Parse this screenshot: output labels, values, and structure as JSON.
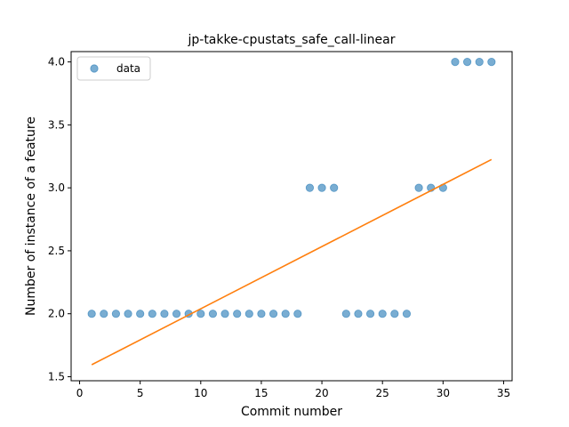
{
  "chart_data": {
    "type": "scatter",
    "title": "jp-takke-cpustats_safe_call-linear",
    "xlabel": "Commit number",
    "ylabel": "Number of instance of a feature",
    "xlim": [
      -0.7,
      35.7
    ],
    "ylim": [
      1.468,
      4.082
    ],
    "xticks": [
      0,
      5,
      10,
      15,
      20,
      25,
      30,
      35
    ],
    "yticks": [
      1.5,
      2.0,
      2.5,
      3.0,
      3.5,
      4.0
    ],
    "xtick_labels": [
      "0",
      "5",
      "10",
      "15",
      "20",
      "25",
      "30",
      "35"
    ],
    "ytick_labels": [
      "1.5",
      "2.0",
      "2.5",
      "3.0",
      "3.5",
      "4.0"
    ],
    "legend": {
      "placement": "top-left",
      "label": "data"
    },
    "series": [
      {
        "name": "data",
        "kind": "scatter",
        "color": "#1f77b4",
        "x": [
          1,
          2,
          3,
          4,
          5,
          6,
          7,
          8,
          9,
          10,
          11,
          12,
          13,
          14,
          15,
          16,
          17,
          18,
          19,
          20,
          21,
          22,
          23,
          24,
          25,
          26,
          27,
          28,
          29,
          30,
          31,
          32,
          33,
          34
        ],
        "y": [
          2,
          2,
          2,
          2,
          2,
          2,
          2,
          2,
          2,
          2,
          2,
          2,
          2,
          2,
          2,
          2,
          2,
          2,
          3,
          3,
          3,
          2,
          2,
          2,
          2,
          2,
          2,
          3,
          3,
          3,
          4,
          4,
          4,
          4
        ]
      },
      {
        "kind": "line",
        "color": "#ff7f0e",
        "x": [
          1,
          34
        ],
        "y": [
          1.595,
          3.225
        ]
      }
    ]
  }
}
